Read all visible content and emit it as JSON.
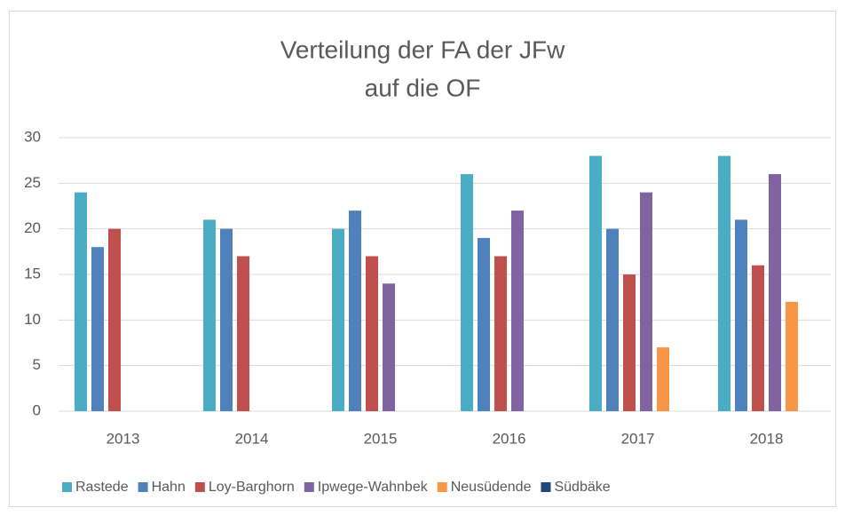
{
  "chart_data": {
    "type": "bar",
    "title": [
      "Verteilung der FA der JFw",
      "auf die OF"
    ],
    "categories": [
      "2013",
      "2014",
      "2015",
      "2016",
      "2017",
      "2018"
    ],
    "series": [
      {
        "name": "Rastede",
        "color": "#4bacc6",
        "values": [
          24,
          21,
          20,
          26,
          28,
          28
        ]
      },
      {
        "name": "Hahn",
        "color": "#4f81bd",
        "values": [
          18,
          20,
          22,
          19,
          20,
          21
        ]
      },
      {
        "name": "Loy-Barghorn",
        "color": "#c0504d",
        "values": [
          20,
          17,
          17,
          17,
          15,
          16
        ]
      },
      {
        "name": "Ipwege-Wahnbek",
        "color": "#8064a2",
        "values": [
          0,
          0,
          14,
          22,
          24,
          26
        ]
      },
      {
        "name": "Neusüdende",
        "color": "#f79646",
        "values": [
          0,
          0,
          0,
          0,
          7,
          12
        ]
      },
      {
        "name": "Südbäke",
        "color": "#1f497d",
        "values": [
          0,
          0,
          0,
          0,
          0,
          0
        ]
      }
    ],
    "ylim": [
      0,
      30
    ],
    "yticks": [
      0,
      5,
      10,
      15,
      20,
      25,
      30
    ],
    "grid": true,
    "legend": "bottom"
  }
}
